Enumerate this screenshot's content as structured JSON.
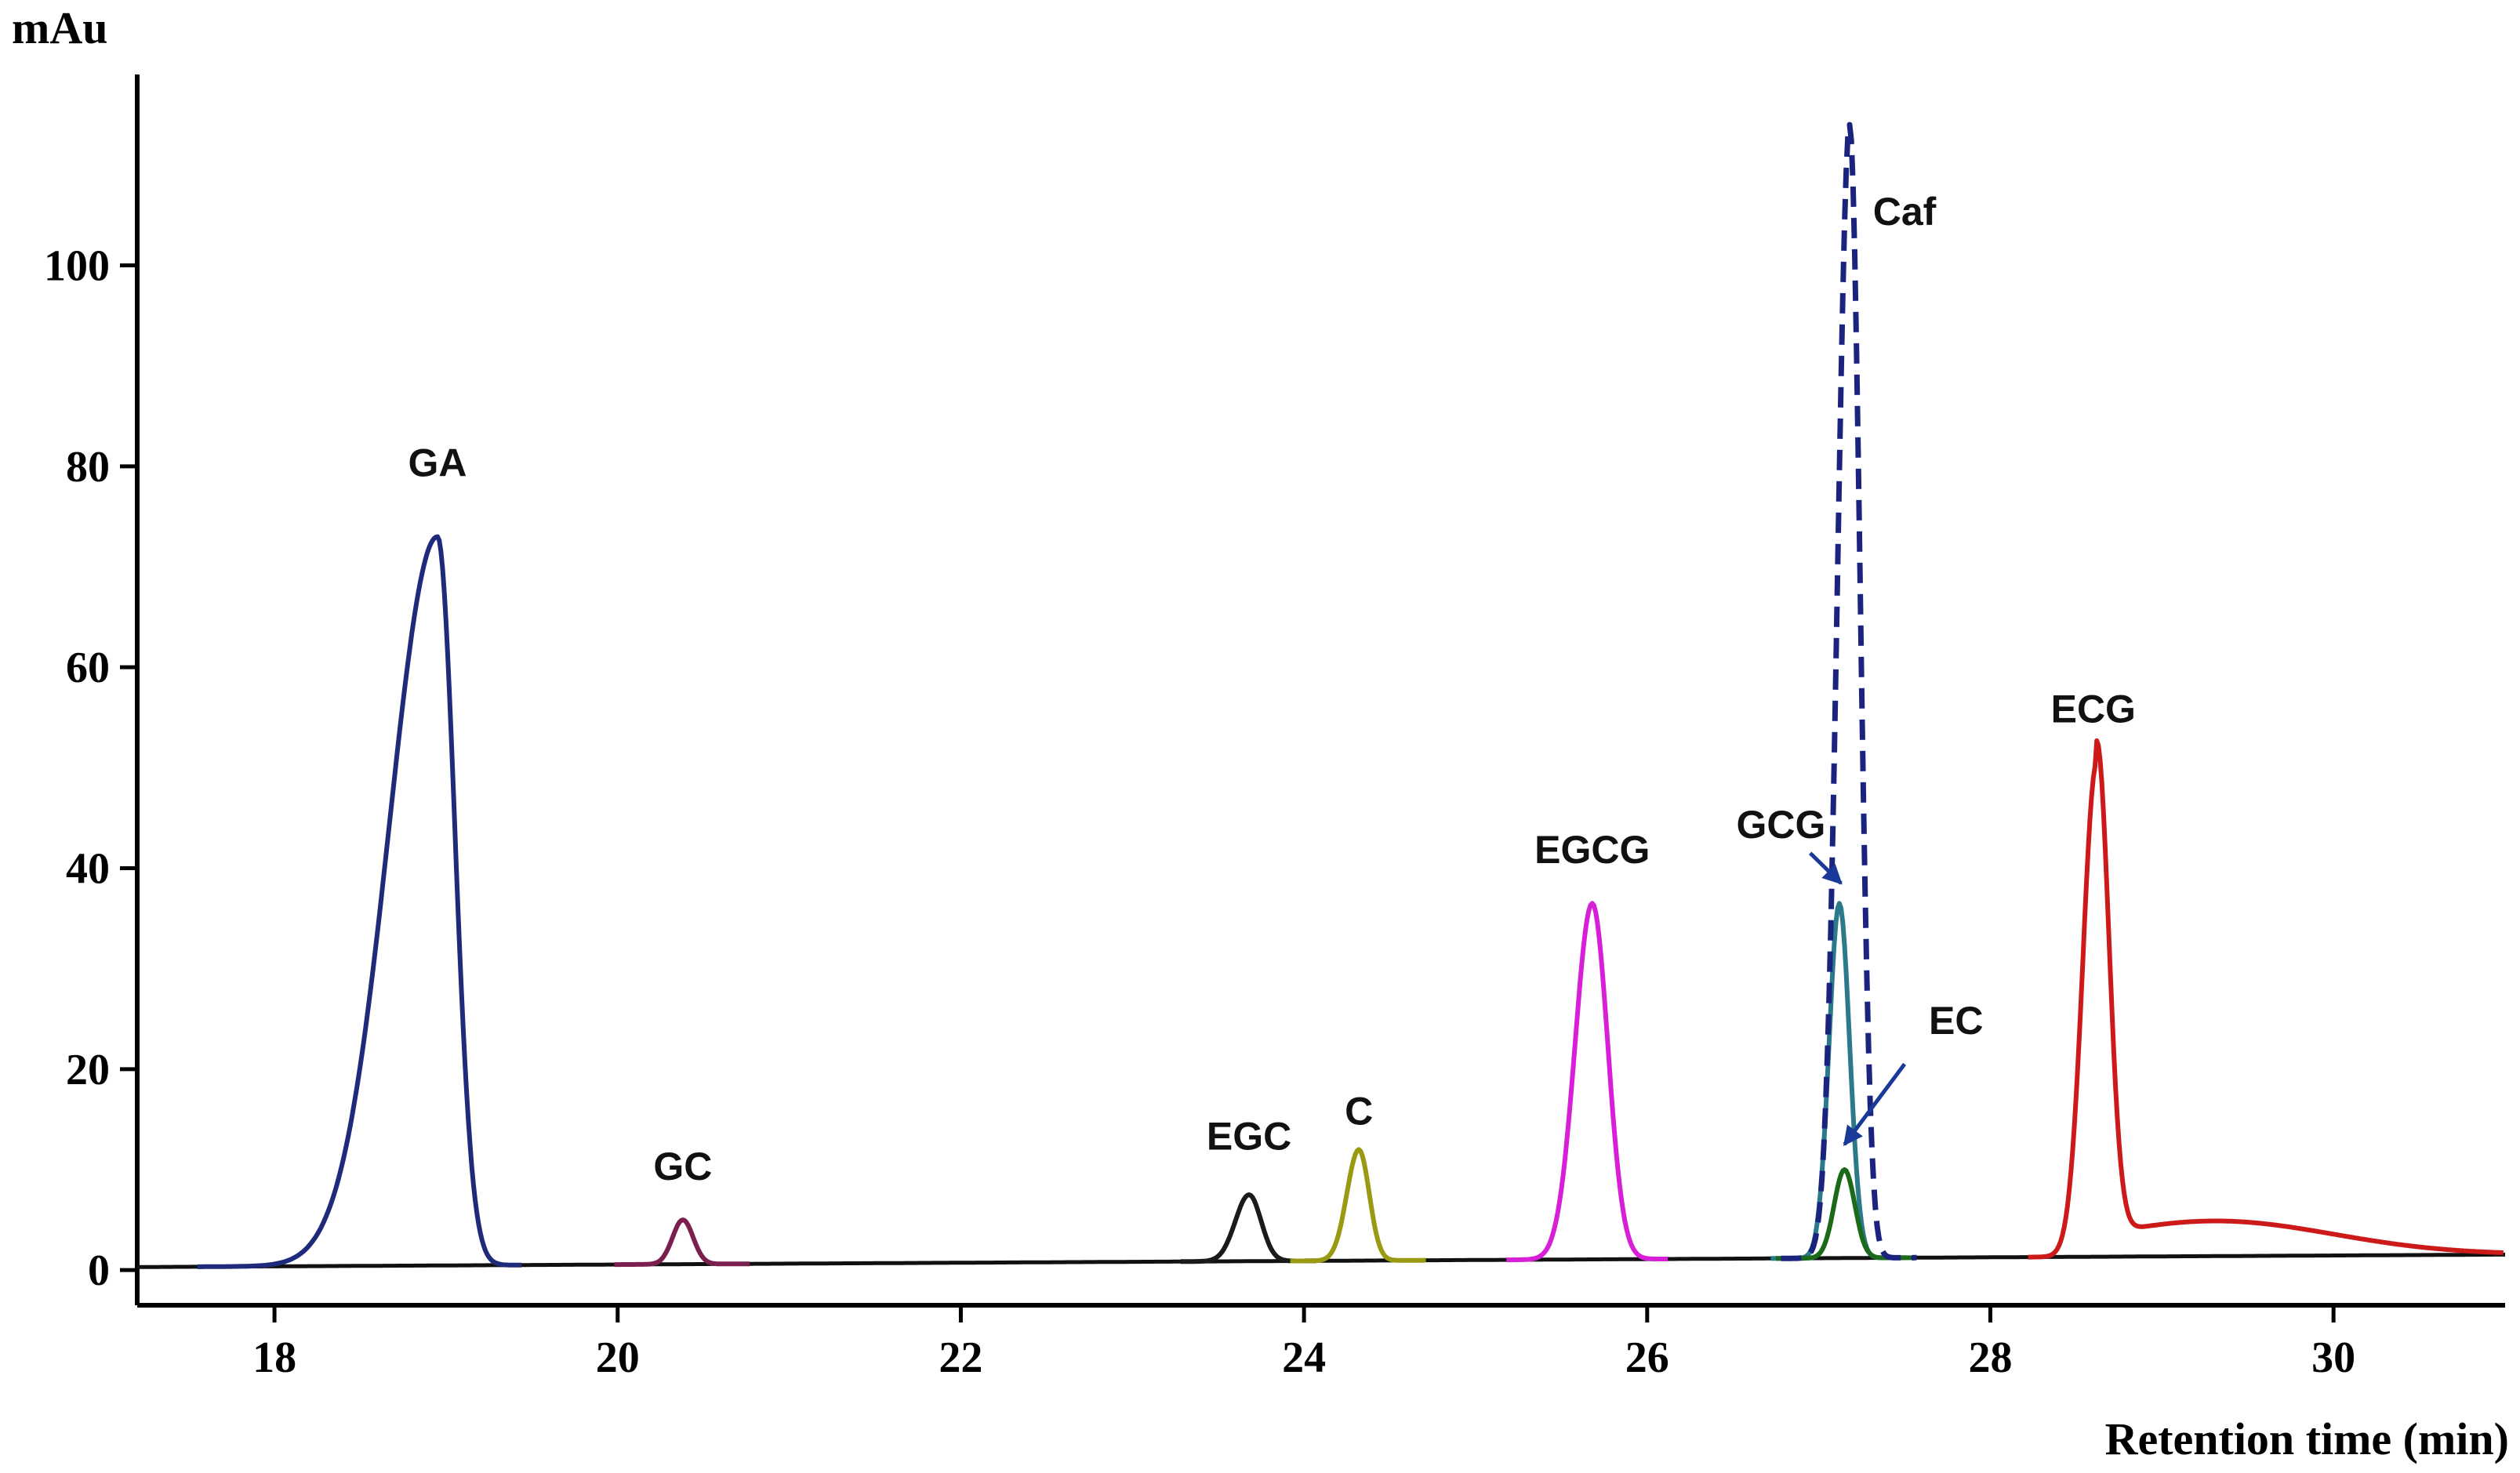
{
  "chart_data": {
    "type": "line",
    "title": "",
    "xlabel": "Retention time (min)",
    "ylabel": "mAu",
    "xlim": [
      17.2,
      31.0
    ],
    "ylim": [
      -3.5,
      119
    ],
    "x_ticks": [
      18,
      20,
      22,
      24,
      26,
      28,
      30
    ],
    "y_ticks": [
      0,
      20,
      40,
      60,
      80,
      100
    ],
    "grid": false,
    "series": [
      {
        "name": "GA",
        "color": "#1f2a7a",
        "style": "solid",
        "peak_time": 18.95,
        "peak_height": 73,
        "baseline_drift": 0.0
      },
      {
        "name": "GC",
        "color": "#7a1f4f",
        "style": "solid",
        "peak_time": 20.38,
        "peak_height": 5,
        "baseline_drift": 0.0
      },
      {
        "name": "EGC",
        "color": "#1a1a1a",
        "style": "solid",
        "peak_time": 23.68,
        "peak_height": 7.5,
        "baseline_drift": 0.0
      },
      {
        "name": "C",
        "color": "#9a9a12",
        "style": "solid",
        "peak_time": 24.32,
        "peak_height": 12,
        "baseline_drift": 0.0
      },
      {
        "name": "EGCG",
        "color": "#d81fd8",
        "style": "solid",
        "peak_time": 25.68,
        "peak_height": 36.5,
        "baseline_drift": 0.0
      },
      {
        "name": "GCG",
        "color": "#2a7a8a",
        "style": "solid",
        "peak_time": 27.12,
        "peak_height": 36.5,
        "baseline_drift": 0.0
      },
      {
        "name": "EC",
        "color": "#1a6a1a",
        "style": "solid",
        "peak_time": 27.15,
        "peak_height": 10,
        "baseline_drift": 0.0
      },
      {
        "name": "Caf",
        "color": "#1a237e",
        "style": "dashed",
        "peak_time": 27.18,
        "peak_height": 114,
        "baseline_drift": 0.0
      },
      {
        "name": "ECG",
        "color": "#cc1a1a",
        "style": "solid",
        "peak_time": 28.62,
        "peak_height": 50.5,
        "baseline_drift": 4.5
      }
    ],
    "annotations": [
      {
        "text": "GA",
        "x": 18.95,
        "y": 79
      },
      {
        "text": "GC",
        "x": 20.38,
        "y": 9
      },
      {
        "text": "EGC",
        "x": 23.68,
        "y": 12
      },
      {
        "text": "C",
        "x": 24.32,
        "y": 14.5
      },
      {
        "text": "EGCG",
        "x": 25.68,
        "y": 40.5
      },
      {
        "text": "GCG",
        "x": 26.78,
        "y": 43
      },
      {
        "text": "EC",
        "x": 27.8,
        "y": 23.5
      },
      {
        "text": "Caf",
        "x": 27.5,
        "y": 104
      },
      {
        "text": "ECG",
        "x": 28.6,
        "y": 54.5
      }
    ]
  }
}
